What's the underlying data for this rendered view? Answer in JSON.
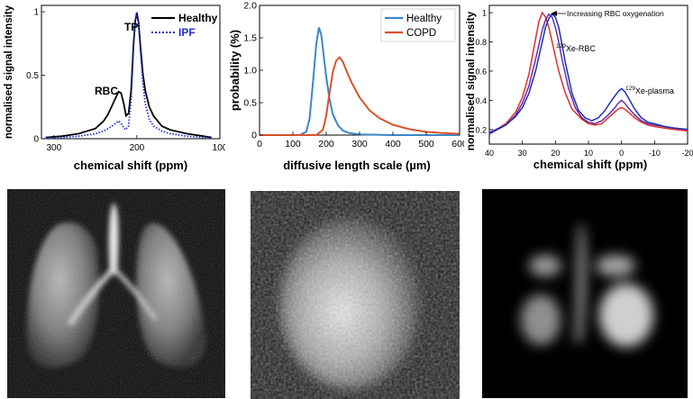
{
  "chart_data": [
    {
      "type": "line",
      "xlabel": "chemical shift (ppm)",
      "ylabel": "normalised signal intensity",
      "xlim": [
        315,
        100
      ],
      "ylim": [
        0,
        1.05
      ],
      "xticks": [
        "300",
        "200",
        "100"
      ],
      "yticks": [
        "0",
        "0.5",
        "1"
      ],
      "xtick_values": [
        300,
        200,
        100
      ],
      "ytick_values": [
        0,
        0.5,
        1
      ],
      "legend": "top-right",
      "annotations": [
        "TP",
        "RBC"
      ],
      "series": [
        {
          "name": "Healthy",
          "color": "#000000",
          "dash": "solid",
          "x": [
            310,
            290,
            270,
            250,
            240,
            235,
            230,
            225,
            222,
            219,
            216,
            213,
            210,
            207,
            204,
            202,
            200,
            198,
            196,
            193,
            190,
            185,
            180,
            170,
            160,
            140,
            120,
            110
          ],
          "y": [
            0.01,
            0.02,
            0.04,
            0.08,
            0.14,
            0.19,
            0.26,
            0.33,
            0.37,
            0.36,
            0.28,
            0.18,
            0.2,
            0.38,
            0.75,
            0.93,
            0.99,
            0.92,
            0.75,
            0.52,
            0.38,
            0.25,
            0.18,
            0.1,
            0.07,
            0.04,
            0.02,
            0.01
          ]
        },
        {
          "name": "IPF",
          "color": "#1f2fd1",
          "dash": "dots",
          "x": [
            310,
            290,
            270,
            250,
            240,
            232,
            226,
            222,
            218,
            214,
            210,
            207,
            204,
            202,
            200,
            198,
            196,
            193,
            190,
            185,
            180,
            170,
            160,
            140,
            120,
            110
          ],
          "y": [
            0.005,
            0.01,
            0.02,
            0.04,
            0.06,
            0.09,
            0.12,
            0.14,
            0.11,
            0.07,
            0.1,
            0.3,
            0.72,
            0.93,
            1.0,
            0.92,
            0.72,
            0.45,
            0.28,
            0.15,
            0.1,
            0.06,
            0.04,
            0.02,
            0.01,
            0.005
          ]
        }
      ]
    },
    {
      "type": "line",
      "xlabel": "diffusive length scale (µm)",
      "ylabel": "probability (%)",
      "xlim": [
        0,
        600
      ],
      "ylim": [
        0,
        2.0
      ],
      "xticks": [
        "0",
        "100",
        "200",
        "300",
        "400",
        "500",
        "600"
      ],
      "yticks": [
        "0",
        "0.5",
        "1.0",
        "1.5",
        "2.0"
      ],
      "xtick_values": [
        0,
        100,
        200,
        300,
        400,
        500,
        600
      ],
      "ytick_values": [
        0,
        0.5,
        1.0,
        1.5,
        2.0
      ],
      "legend": "top-right",
      "series": [
        {
          "name": "Healthy",
          "color": "#3d86c6",
          "x": [
            0,
            120,
            140,
            150,
            160,
            170,
            178,
            185,
            192,
            200,
            210,
            220,
            235,
            250,
            270,
            300,
            350,
            400,
            500,
            600
          ],
          "y": [
            0,
            0,
            0.05,
            0.25,
            0.8,
            1.4,
            1.66,
            1.55,
            1.25,
            0.9,
            0.55,
            0.32,
            0.15,
            0.07,
            0.03,
            0.01,
            0.005,
            0,
            0,
            0
          ]
        },
        {
          "name": "COPD",
          "color": "#d9532b",
          "x": [
            0,
            170,
            190,
            200,
            210,
            220,
            230,
            240,
            250,
            260,
            275,
            300,
            330,
            360,
            400,
            450,
            500,
            550,
            600
          ],
          "y": [
            0,
            0,
            0.08,
            0.3,
            0.65,
            0.98,
            1.15,
            1.2,
            1.13,
            1.0,
            0.82,
            0.58,
            0.38,
            0.26,
            0.16,
            0.09,
            0.05,
            0.03,
            0.02
          ]
        }
      ]
    },
    {
      "type": "line",
      "xlabel": "chemical shift (ppm)",
      "ylabel": "normalised signal intensity",
      "xlim": [
        40,
        -20
      ],
      "ylim": [
        0.1,
        1.05
      ],
      "xticks": [
        "40",
        "30",
        "20",
        "10",
        "0",
        "-10",
        "-20"
      ],
      "yticks": [
        "0.2",
        "0.4",
        "0.6",
        "0.8",
        "1"
      ],
      "xtick_values": [
        40,
        30,
        20,
        10,
        0,
        -10,
        -20
      ],
      "ytick_values": [
        0.2,
        0.4,
        0.6,
        0.8,
        1.0
      ],
      "annotations": {
        "arrow_label": "Increasing RBC oxygenation",
        "rbc_label_prefix": "129",
        "rbc_label_suffix": "Xe-RBC",
        "plasma_label_prefix": "129",
        "plasma_label_suffix": "Xe-plasma"
      },
      "series": [
        {
          "color": "#e03030",
          "x": [
            40,
            35,
            32,
            30,
            28,
            26,
            25,
            24,
            23,
            22,
            21,
            20,
            19,
            17,
            15,
            12,
            10,
            8,
            6,
            4,
            2,
            1,
            0,
            -1,
            -2,
            -4,
            -6,
            -8,
            -10,
            -13,
            -16,
            -20
          ],
          "y": [
            0.17,
            0.24,
            0.32,
            0.42,
            0.58,
            0.82,
            0.94,
            1.0,
            0.97,
            0.9,
            0.8,
            0.7,
            0.6,
            0.45,
            0.34,
            0.27,
            0.24,
            0.23,
            0.24,
            0.28,
            0.32,
            0.34,
            0.35,
            0.34,
            0.32,
            0.28,
            0.25,
            0.23,
            0.22,
            0.21,
            0.2,
            0.19
          ]
        },
        {
          "color": "#6a2ca8",
          "x": [
            40,
            35,
            32,
            30,
            28,
            26,
            24,
            23,
            22,
            21,
            20,
            19,
            18,
            16,
            14,
            12,
            10,
            8,
            6,
            4,
            2,
            1,
            0,
            -1,
            -2,
            -4,
            -6,
            -8,
            -10,
            -13,
            -16,
            -20
          ],
          "y": [
            0.17,
            0.23,
            0.3,
            0.38,
            0.5,
            0.68,
            0.88,
            0.95,
            0.99,
            0.97,
            0.9,
            0.8,
            0.68,
            0.48,
            0.35,
            0.28,
            0.25,
            0.24,
            0.26,
            0.3,
            0.35,
            0.38,
            0.4,
            0.38,
            0.35,
            0.3,
            0.26,
            0.24,
            0.23,
            0.22,
            0.21,
            0.2
          ]
        },
        {
          "color": "#1c2fb0",
          "x": [
            40,
            35,
            32,
            30,
            28,
            26,
            24,
            23,
            22,
            21,
            20,
            19,
            18,
            17,
            15,
            13,
            11,
            9,
            7,
            5,
            3,
            1,
            0,
            -1,
            -2,
            -4,
            -6,
            -8,
            -10,
            -13,
            -16,
            -20
          ],
          "y": [
            0.18,
            0.23,
            0.29,
            0.35,
            0.45,
            0.6,
            0.8,
            0.9,
            0.96,
            0.99,
            0.97,
            0.9,
            0.78,
            0.66,
            0.45,
            0.33,
            0.28,
            0.26,
            0.28,
            0.33,
            0.4,
            0.46,
            0.48,
            0.46,
            0.42,
            0.34,
            0.28,
            0.25,
            0.24,
            0.22,
            0.21,
            0.2
          ]
        }
      ]
    }
  ],
  "images": [
    {
      "icon": "lung-ventilation-mri-icon"
    },
    {
      "icon": "lung-diffusion-map-icon"
    },
    {
      "icon": "lung-rbc-gas-exchange-icon"
    }
  ]
}
